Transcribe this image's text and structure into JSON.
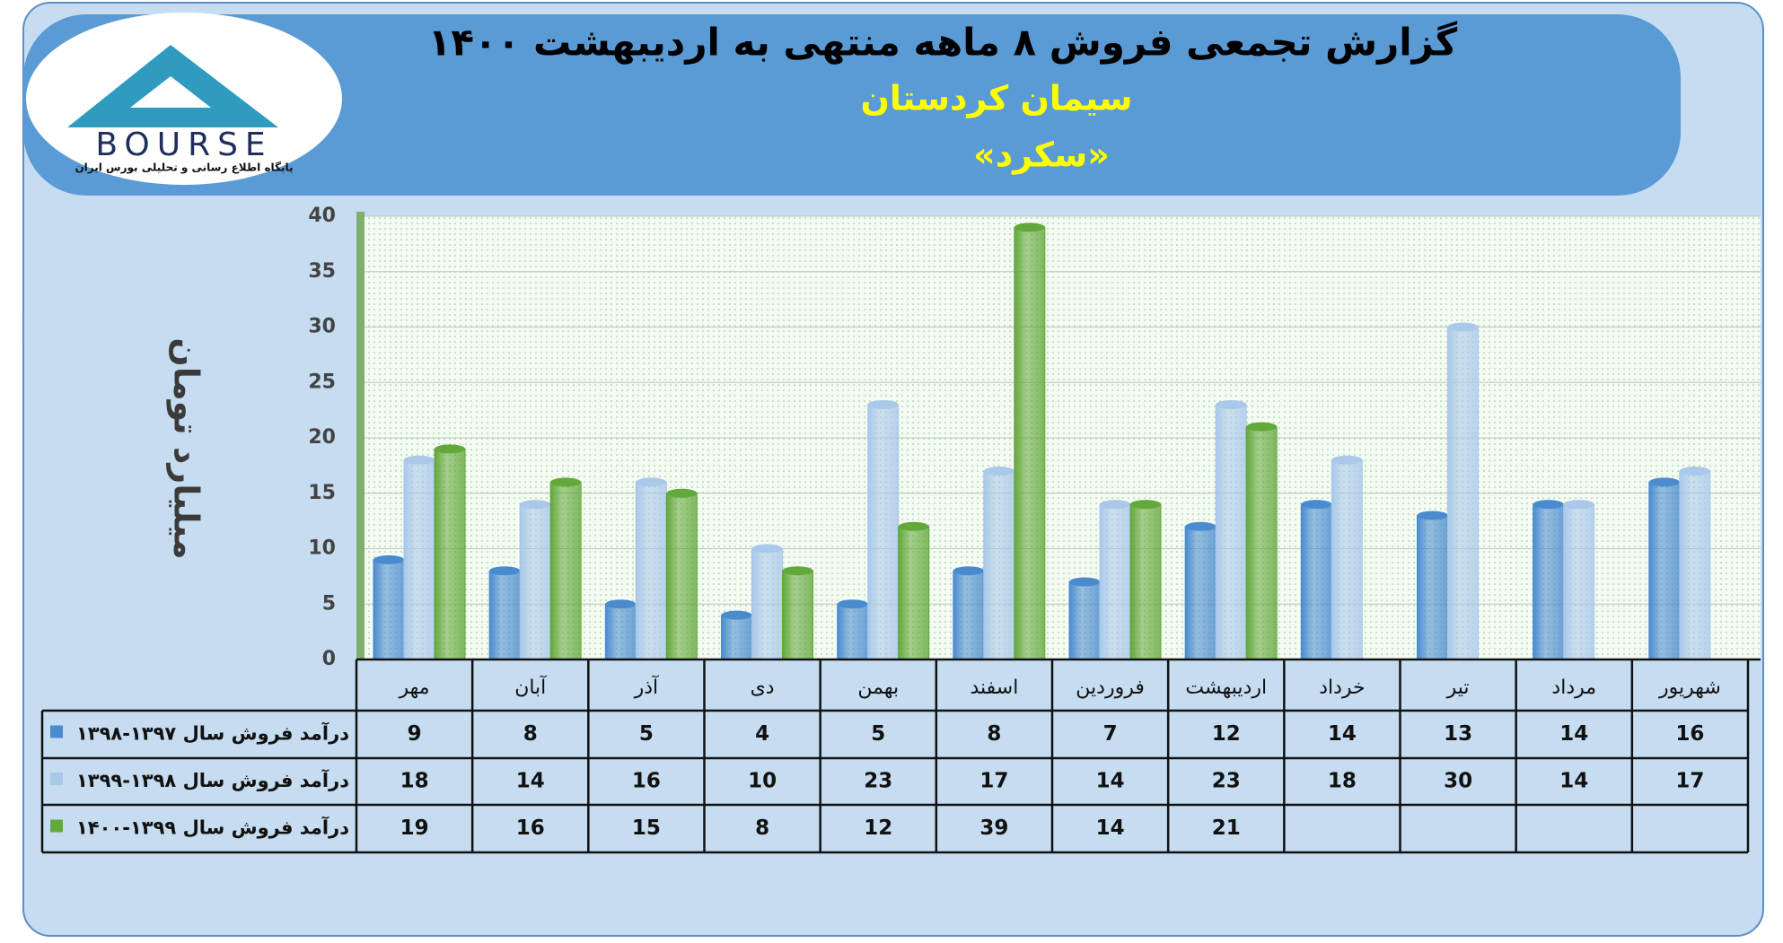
{
  "logo": {
    "name": "BOURSE",
    "subtitle": "پایگاه اطلاع رسانی و تحلیلی بورس ایران"
  },
  "chart_data": {
    "type": "bar",
    "title": "گزارش تجمعی فروش ۸ ماهه منتهی به اردیبهشت ۱۴۰۰",
    "subtitle": "سیمان کردستان",
    "symbol": "«سکرد»",
    "y_label": "میلیارد تومان",
    "categories": [
      "مهر",
      "آبان",
      "آذر",
      "دی",
      "بهمن",
      "اسفند",
      "فروردین",
      "اردیبهشت",
      "خرداد",
      "تیر",
      "مرداد",
      "شهریور"
    ],
    "series": [
      {
        "name": "درآمد فروش سال ۱۳۹۷-۱۳۹۸",
        "color": "#4a8bd0",
        "values": [
          9,
          8,
          5,
          4,
          5,
          8,
          7,
          12,
          14,
          13,
          14,
          16
        ]
      },
      {
        "name": "درآمد فروش سال ۱۳۹۸-۱۳۹۹",
        "color": "#a9c8ea",
        "values": [
          18,
          14,
          16,
          10,
          23,
          17,
          14,
          23,
          18,
          30,
          14,
          17
        ]
      },
      {
        "name": "درآمد فروش سال ۱۳۹۹-۱۴۰۰",
        "color": "#62a83a",
        "values": [
          19,
          16,
          15,
          8,
          12,
          39,
          14,
          21,
          null,
          null,
          null,
          null
        ]
      }
    ],
    "ylim": [
      0,
      40
    ],
    "yticks": [
      0,
      5,
      10,
      15,
      20,
      25,
      30,
      35,
      40
    ],
    "grid": true
  }
}
